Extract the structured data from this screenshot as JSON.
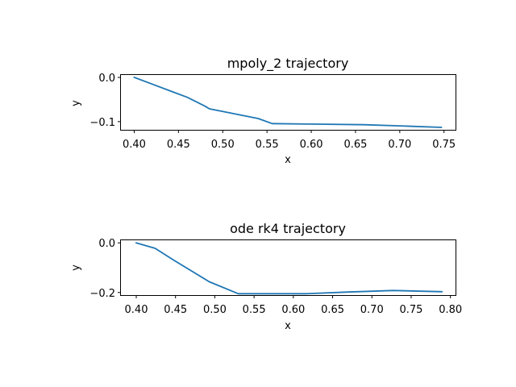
{
  "colors": {
    "series": "#1f77b4",
    "axes": "#000000",
    "background": "#ffffff"
  },
  "chart_data": [
    {
      "type": "line",
      "title": "mpoly_2 trajectory",
      "xlabel": "x",
      "ylabel": "y",
      "xlim": [
        0.385,
        0.763
      ],
      "ylim": [
        -0.1185,
        0.0055
      ],
      "xticks": [
        0.4,
        0.45,
        0.5,
        0.55,
        0.6,
        0.65,
        0.7,
        0.75
      ],
      "xtick_labels": [
        "0.40",
        "0.45",
        "0.50",
        "0.55",
        "0.60",
        "0.65",
        "0.70",
        "0.75"
      ],
      "yticks": [
        0.0,
        -0.1
      ],
      "ytick_labels": [
        "0.0",
        "−0.1"
      ],
      "grid": false,
      "series": [
        {
          "x": [
            0.4,
            0.42,
            0.44,
            0.46,
            0.475,
            0.48,
            0.485,
            0.5,
            0.52,
            0.54,
            0.556,
            0.6,
            0.66,
            0.7,
            0.747
          ],
          "y": [
            0.0,
            -0.015,
            -0.03,
            -0.045,
            -0.06,
            -0.065,
            -0.071,
            -0.077,
            -0.085,
            -0.093,
            -0.1045,
            -0.1055,
            -0.107,
            -0.1095,
            -0.113
          ]
        }
      ]
    },
    {
      "type": "line",
      "title": "ode rk4 trajectory",
      "xlabel": "x",
      "ylabel": "y",
      "xlim": [
        0.3805,
        0.8065
      ],
      "ylim": [
        -0.2105,
        0.0105
      ],
      "xticks": [
        0.4,
        0.45,
        0.5,
        0.55,
        0.6,
        0.65,
        0.7,
        0.75,
        0.8
      ],
      "xtick_labels": [
        "0.40",
        "0.45",
        "0.50",
        "0.55",
        "0.60",
        "0.65",
        "0.70",
        "0.75",
        "0.80"
      ],
      "yticks": [
        0.0,
        -0.2
      ],
      "ytick_labels": [
        "0.0",
        "−0.2"
      ],
      "grid": false,
      "series": [
        {
          "x": [
            0.4,
            0.424,
            0.447,
            0.493,
            0.53,
            0.617,
            0.67,
            0.727,
            0.789
          ],
          "y": [
            0.0,
            -0.022,
            -0.068,
            -0.157,
            -0.205,
            -0.205,
            -0.198,
            -0.192,
            -0.197
          ]
        }
      ]
    }
  ]
}
